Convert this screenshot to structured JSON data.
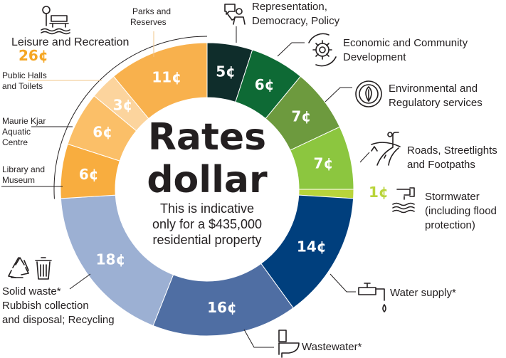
{
  "chart_data": {
    "type": "pie",
    "title": "Rates dollar",
    "subtitle": "This is indicative only for a $435,000 residential property",
    "unit": "¢",
    "slices": [
      {
        "label": "Representation, Democracy, Policy",
        "value": 5,
        "display": "5¢",
        "color": "#0f2d2b"
      },
      {
        "label": "Economic and Community Development",
        "value": 6,
        "display": "6¢",
        "color": "#0e6a35"
      },
      {
        "label": "Environmental and Regulatory services",
        "value": 7,
        "display": "7¢",
        "color": "#6d9a3e"
      },
      {
        "label": "Roads, Streetlights and Footpaths",
        "value": 7,
        "display": "7¢",
        "color": "#8cc63f"
      },
      {
        "label": "Stormwater (including flood protection)",
        "value": 1,
        "display": "1¢",
        "color": "#b9d43a"
      },
      {
        "label": "Water supply*",
        "value": 14,
        "display": "14¢",
        "color": "#003f7d"
      },
      {
        "label": "Wastewater*",
        "value": 16,
        "display": "16¢",
        "color": "#4f6ea3"
      },
      {
        "label": "Solid waste* Rubbish collection and disposal; Recycling",
        "value": 18,
        "display": "18¢",
        "color": "#9cb0d3"
      },
      {
        "label": "Library and Museum",
        "value": 6,
        "display": "6¢",
        "color": "#f8ad3f"
      },
      {
        "label": "Maurie Kjar Aquatic Centre",
        "value": 6,
        "display": "6¢",
        "color": "#fbbf68"
      },
      {
        "label": "Public Halls and Toilets",
        "value": 3,
        "display": "3¢",
        "color": "#fcd49d"
      },
      {
        "label": "Parks and Reserves",
        "value": 11,
        "display": "11¢",
        "color": "#f8b14d"
      }
    ],
    "group": {
      "label": "Leisure and Recreation",
      "value": 26,
      "display": "26¢",
      "color": "#f8ad3f"
    },
    "colors": {
      "stormwater_value_text": "#b9d43a",
      "group_value_text": "#f5a623"
    }
  },
  "labels": {
    "title_line1": "Rates",
    "title_line2": "dollar",
    "subtitle_line1": "This is indicative",
    "subtitle_line2": "only for a $435,000",
    "subtitle_line3": "residential property",
    "representation": [
      "Representation,",
      "Democracy, Policy"
    ],
    "economic": [
      "Economic and Community",
      "Development"
    ],
    "environmental": [
      "Environmental and",
      "Regulatory services"
    ],
    "roads": [
      "Roads, Streetlights",
      "and Footpaths"
    ],
    "stormwater": [
      "Stormwater",
      "(including flood",
      "protection)"
    ],
    "water": [
      "Water supply*"
    ],
    "wastewater": [
      "Wastewater*"
    ],
    "solid_waste": [
      "Solid waste*",
      "Rubbish collection",
      "and disposal; Recycling"
    ],
    "library": [
      "Library and",
      "Museum"
    ],
    "aquatic": [
      "Maurie Kjar",
      "Aquatic",
      "Centre"
    ],
    "halls": [
      "Public Halls",
      "and Toilets"
    ],
    "parks": [
      "Parks and",
      "Reserves"
    ],
    "leisure": [
      "Leisure and Recreation"
    ]
  },
  "icons": [
    "representation-icon",
    "gear-icon",
    "leaf-icon",
    "road-icon",
    "drain-icon",
    "tap-icon",
    "toilet-icon",
    "recycle-icon",
    "bin-icon",
    "park-bench-icon"
  ]
}
